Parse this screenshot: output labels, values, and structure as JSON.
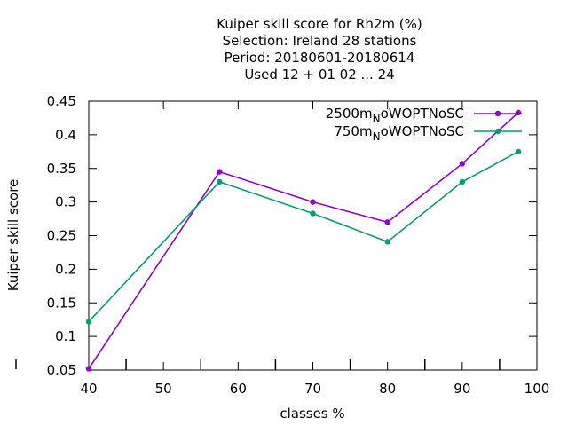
{
  "chart_data": {
    "type": "line",
    "title_lines": [
      "Kuiper skill score  for Rh2m (%)",
      "Selection: Ireland     28 stations",
      "Period: 20180601-20180614",
      "Used  12 + 01 02 ... 24"
    ],
    "xlabel": "classes %",
    "ylabel": "Kuiper skill score",
    "xlim": [
      40,
      100
    ],
    "ylim": [
      0.05,
      0.45
    ],
    "xticks": [
      "40",
      "50",
      "60",
      "70",
      "80",
      "90",
      "100"
    ],
    "yticks": [
      "0.05",
      "0.1",
      "0.15",
      "0.2",
      "0.25",
      "0.3",
      "0.35",
      "0.4",
      "0.45"
    ],
    "grid": false,
    "legend_position": "top-right",
    "series": [
      {
        "name": "2500m",
        "name_sub": "N",
        "name_suffix": "oWOPTNoSC",
        "color": "#9400d3",
        "x": [
          40,
          57.5,
          70,
          80,
          90,
          97.5
        ],
        "y": [
          0.052,
          0.345,
          0.3,
          0.27,
          0.357,
          0.433
        ]
      },
      {
        "name": "750m",
        "name_sub": "N",
        "name_suffix": "oWOPTNoSC",
        "color": "#009e73",
        "x": [
          40,
          57.5,
          70,
          80,
          90,
          97.5
        ],
        "y": [
          0.122,
          0.33,
          0.283,
          0.241,
          0.33,
          0.375
        ]
      }
    ]
  }
}
